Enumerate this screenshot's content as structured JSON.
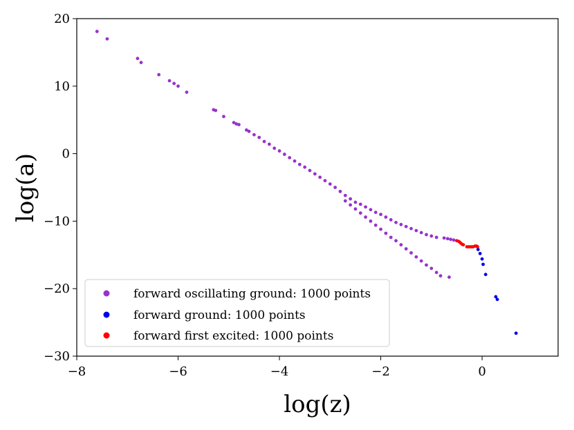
{
  "chart_data": {
    "type": "scatter",
    "xlabel": "log(z)",
    "ylabel": "log(a)",
    "xlim": [
      -8,
      1.5
    ],
    "ylim": [
      -30,
      20
    ],
    "xticks": [
      -8,
      -6,
      -4,
      -2,
      0
    ],
    "yticks": [
      -30,
      -20,
      -10,
      0,
      10,
      20
    ],
    "xtick_labels": [
      "−8",
      "−6",
      "−4",
      "−2",
      "0"
    ],
    "ytick_labels": [
      "−30",
      "−20",
      "−10",
      "0",
      "10",
      "20"
    ],
    "grid": false,
    "legend": {
      "placement": "lower-left"
    },
    "series": [
      {
        "name": "forward oscillating ground: 1000 points",
        "color": "#9932cc",
        "points": [
          [
            -7.6,
            18.1
          ],
          [
            -7.4,
            17.0
          ],
          [
            -6.8,
            14.1
          ],
          [
            -6.73,
            13.5
          ],
          [
            -6.38,
            11.7
          ],
          [
            -6.17,
            10.8
          ],
          [
            -6.08,
            10.4
          ],
          [
            -6.0,
            10.0
          ],
          [
            -5.83,
            9.1
          ],
          [
            -5.3,
            6.5
          ],
          [
            -5.26,
            6.4
          ],
          [
            -5.1,
            5.5
          ],
          [
            -4.9,
            4.6
          ],
          [
            -4.85,
            4.4
          ],
          [
            -4.8,
            4.3
          ],
          [
            -4.65,
            3.5
          ],
          [
            -4.6,
            3.3
          ],
          [
            -4.5,
            2.8
          ],
          [
            -4.4,
            2.4
          ],
          [
            -4.3,
            1.8
          ],
          [
            -4.2,
            1.4
          ],
          [
            -4.1,
            0.8
          ],
          [
            -4.0,
            0.4
          ],
          [
            -3.9,
            -0.1
          ],
          [
            -3.8,
            -0.6
          ],
          [
            -3.7,
            -1.1
          ],
          [
            -3.6,
            -1.6
          ],
          [
            -3.5,
            -2.0
          ],
          [
            -3.4,
            -2.5
          ],
          [
            -3.3,
            -3.0
          ],
          [
            -3.2,
            -3.5
          ],
          [
            -3.1,
            -4.0
          ],
          [
            -3.0,
            -4.5
          ],
          [
            -2.9,
            -5.0
          ],
          [
            -2.8,
            -5.6
          ],
          [
            -2.7,
            -6.2
          ],
          [
            -2.6,
            -6.7
          ],
          [
            -2.5,
            -7.2
          ],
          [
            -2.4,
            -7.5
          ],
          [
            -2.3,
            -7.9
          ],
          [
            -2.2,
            -8.3
          ],
          [
            -2.1,
            -8.7
          ],
          [
            -2.0,
            -9.0
          ],
          [
            -1.9,
            -9.4
          ],
          [
            -1.8,
            -9.8
          ],
          [
            -1.7,
            -10.2
          ],
          [
            -1.6,
            -10.5
          ],
          [
            -1.5,
            -10.8
          ],
          [
            -1.4,
            -11.1
          ],
          [
            -1.3,
            -11.4
          ],
          [
            -1.2,
            -11.7
          ],
          [
            -1.1,
            -12.0
          ],
          [
            -1.0,
            -12.2
          ],
          [
            -0.9,
            -12.4
          ],
          [
            -2.7,
            -7.0
          ],
          [
            -2.6,
            -7.6
          ],
          [
            -2.5,
            -8.2
          ],
          [
            -2.4,
            -8.8
          ],
          [
            -2.3,
            -9.4
          ],
          [
            -2.2,
            -10.0
          ],
          [
            -2.1,
            -10.6
          ],
          [
            -2.0,
            -11.2
          ],
          [
            -1.9,
            -11.8
          ],
          [
            -1.8,
            -12.4
          ],
          [
            -1.7,
            -12.9
          ],
          [
            -1.6,
            -13.5
          ],
          [
            -1.5,
            -14.1
          ],
          [
            -1.4,
            -14.7
          ],
          [
            -1.3,
            -15.3
          ],
          [
            -1.2,
            -15.9
          ],
          [
            -1.1,
            -16.5
          ],
          [
            -1.0,
            -17.0
          ],
          [
            -0.9,
            -17.6
          ],
          [
            -0.82,
            -18.1
          ],
          [
            -0.65,
            -18.3
          ],
          [
            -0.75,
            -12.5
          ],
          [
            -0.68,
            -12.6
          ],
          [
            -0.62,
            -12.7
          ],
          [
            -0.56,
            -12.8
          ]
        ]
      },
      {
        "name": "forward ground: 1000 points",
        "color": "#0000ee",
        "points": [
          [
            -0.08,
            -14.2
          ],
          [
            -0.04,
            -14.8
          ],
          [
            0.0,
            -15.6
          ],
          [
            0.02,
            -16.4
          ],
          [
            0.07,
            -17.9
          ],
          [
            0.27,
            -21.2
          ],
          [
            0.3,
            -21.6
          ],
          [
            0.67,
            -26.6
          ]
        ]
      },
      {
        "name": "forward first excited: 1000 points",
        "color": "#ff0000",
        "points": [
          [
            -0.5,
            -12.9
          ],
          [
            -0.46,
            -13.0
          ],
          [
            -0.43,
            -13.2
          ],
          [
            -0.4,
            -13.4
          ],
          [
            -0.37,
            -13.5
          ],
          [
            -0.3,
            -13.8
          ],
          [
            -0.26,
            -13.8
          ],
          [
            -0.22,
            -13.8
          ],
          [
            -0.18,
            -13.8
          ],
          [
            -0.14,
            -13.7
          ],
          [
            -0.11,
            -13.7
          ],
          [
            -0.09,
            -13.8
          ]
        ]
      }
    ]
  }
}
